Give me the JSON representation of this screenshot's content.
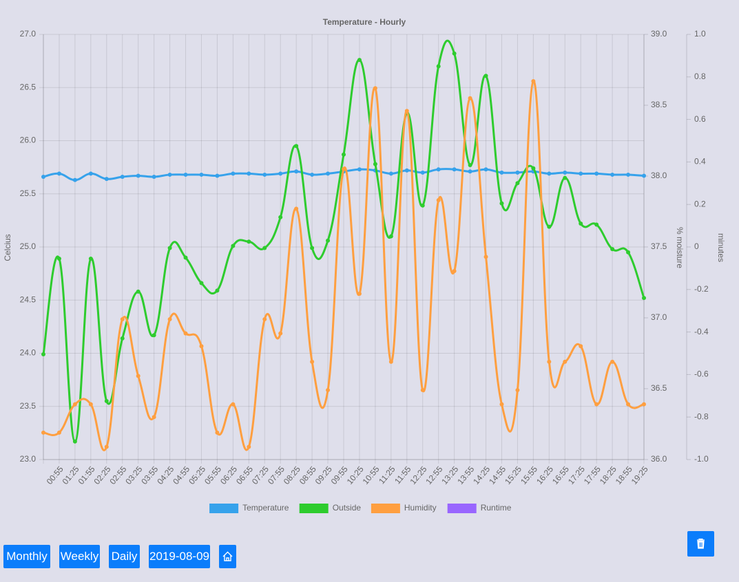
{
  "chart_data": {
    "type": "line",
    "title": "Temperature - Hourly",
    "ylabel": "Celcius",
    "y2label": "% moisture",
    "y3label": "minutes",
    "categories": [
      null,
      "00:55",
      "01:25",
      "01:55",
      "02:25",
      "02:55",
      "03:25",
      "03:55",
      "04:25",
      "04:55",
      "05:25",
      "05:55",
      "06:25",
      "06:55",
      "07:25",
      "07:55",
      "08:25",
      "08:55",
      "09:25",
      "09:55",
      "10:25",
      "10:55",
      "11:25",
      "11:55",
      "12:25",
      "12:55",
      "13:25",
      "13:55",
      "14:25",
      "14:55",
      "15:25",
      "15:55",
      "16:25",
      "16:55",
      "17:25",
      "17:55",
      "18:25",
      "18:55",
      "19:25"
    ],
    "series": [
      {
        "name": "Temperature",
        "color": "#36a2eb",
        "axis": "y",
        "values": [
          25.66,
          25.69,
          25.63,
          25.69,
          25.64,
          25.66,
          25.67,
          25.66,
          25.68,
          25.68,
          25.68,
          25.67,
          25.69,
          25.69,
          25.68,
          25.69,
          25.71,
          25.68,
          25.69,
          25.71,
          25.73,
          25.72,
          25.69,
          25.72,
          25.7,
          25.73,
          25.73,
          25.71,
          25.73,
          25.7,
          25.7,
          25.71,
          25.69,
          25.7,
          25.69,
          25.69,
          25.68,
          25.68,
          25.67
        ]
      },
      {
        "name": "Outside",
        "color": "#2ecc2e",
        "axis": "y",
        "values": [
          23.99,
          24.89,
          23.17,
          24.89,
          23.55,
          24.14,
          24.58,
          24.17,
          24.99,
          24.9,
          24.66,
          24.59,
          25.01,
          25.05,
          24.99,
          25.28,
          25.95,
          24.99,
          25.06,
          25.87,
          26.76,
          25.78,
          25.1,
          26.26,
          25.39,
          26.7,
          26.82,
          25.77,
          26.61,
          25.41,
          25.6,
          25.74,
          25.19,
          25.65,
          25.22,
          25.21,
          24.98,
          24.95,
          24.52
        ]
      },
      {
        "name": "Humidity",
        "color": "#ff9f40",
        "axis": "y2",
        "values": [
          36.19,
          36.19,
          36.39,
          36.39,
          36.09,
          36.99,
          36.59,
          36.3,
          36.99,
          36.89,
          36.8,
          36.19,
          36.39,
          36.09,
          36.99,
          36.89,
          37.77,
          36.69,
          36.49,
          38.05,
          37.17,
          38.62,
          36.69,
          38.46,
          36.49,
          37.83,
          37.33,
          38.55,
          37.43,
          36.39,
          36.49,
          38.67,
          36.69,
          36.69,
          36.8,
          36.39,
          36.69,
          36.39,
          36.39
        ]
      },
      {
        "name": "Runtime",
        "color": "#9966ff",
        "axis": "y3",
        "values": [
          null,
          null,
          null,
          null,
          null,
          null,
          null,
          null,
          null,
          null,
          null,
          null,
          null,
          null,
          null,
          null,
          null,
          null,
          null,
          null,
          null,
          null,
          null,
          null,
          null,
          null,
          null,
          null,
          null,
          null,
          null,
          null,
          null,
          null,
          null,
          null,
          null,
          null,
          null
        ]
      }
    ],
    "ylim": [
      23,
      27
    ],
    "yticks": [
      {
        "value": 23,
        "label": "23.0"
      },
      23.5,
      {
        "value": 24,
        "label": "24.0"
      },
      24.5,
      {
        "value": 25,
        "label": "25.0"
      },
      25.5,
      {
        "value": 26,
        "label": "26.0"
      },
      26.5,
      {
        "value": 27,
        "label": "27.0"
      }
    ],
    "y2lim": [
      36,
      39
    ],
    "y2ticks": [
      {
        "value": 36,
        "label": "36.0"
      },
      36.5,
      {
        "value": 37,
        "label": "37.0"
      },
      37.5,
      {
        "value": 38,
        "label": "38.0"
      },
      38.5,
      {
        "value": 39,
        "label": "39.0"
      }
    ],
    "y3lim": [
      -1,
      1
    ],
    "y3ticks": [
      {
        "value": -1,
        "label": "-1.0"
      },
      -0.8,
      -0.6,
      -0.4,
      -0.2,
      0,
      0.2,
      0.4,
      0.6,
      0.8,
      {
        "value": 1,
        "label": "1.0"
      }
    ],
    "grid": true,
    "legend": "bottom"
  },
  "buttons": [
    "Monthly",
    "Weekly",
    "Daily",
    "2019-08-09"
  ]
}
